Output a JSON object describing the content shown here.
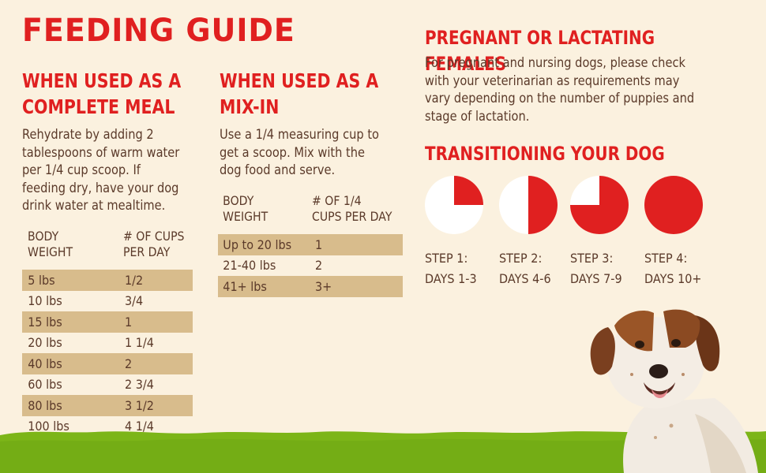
{
  "title": "FEEDING GUIDE",
  "complete_meal": {
    "heading_line1": "WHEN USED AS A",
    "heading_line2": "COMPLETE MEAL",
    "text_lines": [
      "Rehydrate by adding 2",
      "tablespoons of warm water",
      "per 1/4 cup scoop. If",
      "feeding dry, have your dog",
      "drink water at mealtime."
    ],
    "col1_header": [
      "BODY",
      "WEIGHT"
    ],
    "col2_header": [
      "# OF CUPS",
      "PER DAY"
    ],
    "rows": [
      {
        "weight": "5 lbs",
        "amount": "1/2",
        "shade": true
      },
      {
        "weight": "10 lbs",
        "amount": "3/4",
        "shade": false
      },
      {
        "weight": "15 lbs",
        "amount": "1",
        "shade": true
      },
      {
        "weight": "20 lbs",
        "amount": "1 1/4",
        "shade": false
      },
      {
        "weight": "40 lbs",
        "amount": "2",
        "shade": true
      },
      {
        "weight": "60 lbs",
        "amount": "2 3/4",
        "shade": false
      },
      {
        "weight": "80 lbs",
        "amount": "3 1/2",
        "shade": true
      },
      {
        "weight": "100 lbs",
        "amount": "4 1/4",
        "shade": false
      }
    ]
  },
  "mix_in": {
    "heading_line1": "WHEN USED AS A",
    "heading_line2": "MIX-IN",
    "text_lines": [
      "Use a 1/4 measuring cup to",
      "get a scoop. Mix with the",
      "dog food and serve."
    ],
    "col1_header": [
      "BODY",
      "WEIGHT"
    ],
    "col2_header": [
      "# OF 1/4",
      "CUPS PER DAY"
    ],
    "rows": [
      {
        "weight": "Up to 20 lbs",
        "amount": "1",
        "shade": true
      },
      {
        "weight": "21-40 lbs",
        "amount": "2",
        "shade": false
      },
      {
        "weight": "41+ lbs",
        "amount": "3+",
        "shade": true
      }
    ]
  },
  "pregnant": {
    "heading": "PREGNANT OR LACTATING FEMALES",
    "text_lines": [
      "For pregnant and nursing dogs, please check",
      "with your veterinarian as requirements may",
      "vary depending on the number of puppies and",
      "stage of lactation."
    ]
  },
  "transition": {
    "heading": "TRANSITIONING YOUR DOG",
    "steps": [
      {
        "step": "STEP 1:",
        "days": "DAYS 1-3",
        "fraction": 0.25
      },
      {
        "step": "STEP 2:",
        "days": "DAYS 4-6",
        "fraction": 0.5
      },
      {
        "step": "STEP 3:",
        "days": "DAYS 7-9",
        "fraction": 0.75
      },
      {
        "step": "STEP 4:",
        "days": "DAYS 10+",
        "fraction": 1.0
      }
    ]
  },
  "colors": {
    "accent_red": "#e02020",
    "text_brown": "#5b3a2a",
    "background": "#fbf1df",
    "row_shade": "#d8bc8c",
    "grass": "#7cb518"
  }
}
